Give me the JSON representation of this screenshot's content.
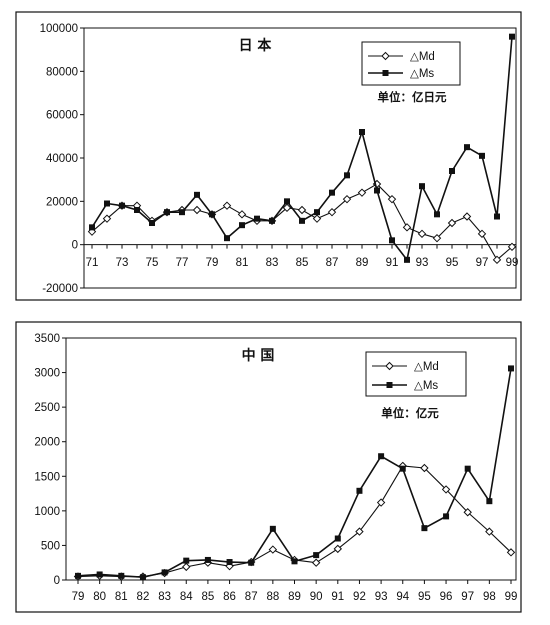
{
  "chart_data": [
    {
      "type": "line",
      "title": "日 本",
      "unit_note": "单位：亿日元",
      "ylim": [
        -20000,
        100000
      ],
      "yticks": [
        "100000",
        "80000",
        "60000",
        "40000",
        "20000",
        "0",
        "-20000"
      ],
      "ytick_values": [
        100000,
        80000,
        60000,
        40000,
        20000,
        0,
        -20000
      ],
      "x": [
        71,
        72,
        73,
        74,
        75,
        76,
        77,
        78,
        79,
        80,
        81,
        82,
        83,
        84,
        85,
        86,
        87,
        88,
        89,
        90,
        91,
        92,
        93,
        94,
        95,
        96,
        97,
        98,
        99
      ],
      "xtick_labels": [
        "71",
        "73",
        "75",
        "77",
        "79",
        "81",
        "83",
        "85",
        "87",
        "89",
        "91",
        "93",
        "95",
        "97",
        "99"
      ],
      "xtick_values": [
        71,
        73,
        75,
        77,
        79,
        81,
        83,
        85,
        87,
        89,
        91,
        93,
        95,
        97,
        99
      ],
      "legend_position": "top-right",
      "series": [
        {
          "name": "△Md",
          "marker": "diamond",
          "values": [
            6000,
            12000,
            18000,
            18000,
            11000,
            15000,
            16000,
            16000,
            14000,
            18000,
            14000,
            11000,
            11000,
            17000,
            16000,
            12000,
            15000,
            21000,
            24000,
            28000,
            21000,
            8000,
            5000,
            3000,
            10000,
            13000,
            5000,
            -7000,
            -1000
          ]
        },
        {
          "name": "△Ms",
          "marker": "square",
          "values": [
            8000,
            19000,
            18000,
            16000,
            10000,
            15000,
            15000,
            23000,
            14000,
            3000,
            9000,
            12000,
            11000,
            20000,
            11000,
            15000,
            24000,
            32000,
            52000,
            25000,
            2000,
            -7000,
            27000,
            14000,
            34000,
            45000,
            41000,
            13000,
            96000
          ]
        }
      ]
    },
    {
      "type": "line",
      "title": "中 国",
      "unit_note": "单位：亿元",
      "ylim": [
        0,
        3500
      ],
      "yticks": [
        "3500",
        "3000",
        "2500",
        "2000",
        "1500",
        "1000",
        "500",
        "0"
      ],
      "ytick_values": [
        3500,
        3000,
        2500,
        2000,
        1500,
        1000,
        500,
        0
      ],
      "x": [
        79,
        80,
        81,
        82,
        83,
        84,
        85,
        86,
        87,
        88,
        89,
        90,
        91,
        92,
        93,
        94,
        95,
        96,
        97,
        98,
        99
      ],
      "xtick_labels": [
        "79",
        "80",
        "81",
        "82",
        "83",
        "84",
        "85",
        "86",
        "87",
        "88",
        "89",
        "90",
        "91",
        "92",
        "93",
        "94",
        "95",
        "96",
        "97",
        "98",
        "99"
      ],
      "xtick_values": [
        79,
        80,
        81,
        82,
        83,
        84,
        85,
        86,
        87,
        88,
        89,
        90,
        91,
        92,
        93,
        94,
        95,
        96,
        97,
        98,
        99
      ],
      "legend_position": "top-right",
      "series": [
        {
          "name": "△Md",
          "marker": "diamond",
          "values": [
            50,
            60,
            50,
            50,
            100,
            190,
            250,
            200,
            260,
            440,
            290,
            250,
            450,
            700,
            1120,
            1650,
            1620,
            1310,
            980,
            700,
            400
          ]
        },
        {
          "name": "△Ms",
          "marker": "square",
          "values": [
            60,
            80,
            60,
            40,
            110,
            280,
            290,
            260,
            250,
            740,
            270,
            360,
            600,
            1290,
            1790,
            1610,
            750,
            920,
            1610,
            1140,
            3060
          ]
        }
      ]
    }
  ]
}
